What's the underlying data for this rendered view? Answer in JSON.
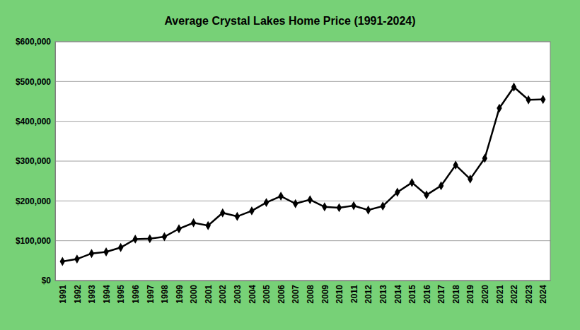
{
  "chart_data": {
    "type": "line",
    "title": "Average Crystal Lakes Home Price (1991-2024)",
    "categories": [
      "1991",
      "1992",
      "1993",
      "1994",
      "1995",
      "1996",
      "1997",
      "1998",
      "1999",
      "2000",
      "2001",
      "2002",
      "2003",
      "2004",
      "2005",
      "2006",
      "2007",
      "2008",
      "2009",
      "2010",
      "2011",
      "2012",
      "2013",
      "2014",
      "2015",
      "2016",
      "2017",
      "2018",
      "2019",
      "2020",
      "2021",
      "2022",
      "2023",
      "2024"
    ],
    "values": [
      48000,
      54000,
      68000,
      72000,
      83000,
      104000,
      105000,
      110000,
      130000,
      145000,
      138000,
      170000,
      161000,
      175000,
      196000,
      212000,
      193000,
      203000,
      185000,
      183000,
      188000,
      177000,
      187000,
      222000,
      246000,
      215000,
      238000,
      290000,
      255000,
      307000,
      433000,
      486000,
      454000,
      455000
    ],
    "color": "#000000",
    "marker": "diamond",
    "line_style": "solid",
    "ylim": [
      0,
      600000
    ],
    "yticks": [
      {
        "value": 0,
        "label": "$0"
      },
      {
        "value": 100000,
        "label": "$100,000"
      },
      {
        "value": 200000,
        "label": "$200,000"
      },
      {
        "value": 300000,
        "label": "$300,000"
      },
      {
        "value": 400000,
        "label": "$400,000"
      },
      {
        "value": 500000,
        "label": "$500,000"
      },
      {
        "value": 600000,
        "label": "$600,000"
      }
    ],
    "grid": true
  }
}
